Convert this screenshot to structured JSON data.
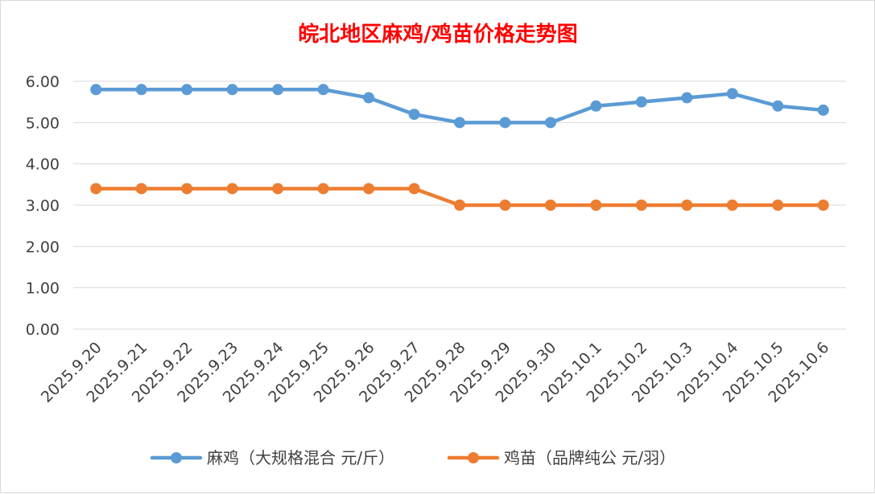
{
  "chart_data": {
    "type": "line",
    "title": "皖北地区麻鸡/鸡苗价格走势图",
    "title_color": "#ff0000",
    "xlabel": "",
    "ylabel": "",
    "ylim": [
      0,
      6
    ],
    "y_ticks": [
      "0.00",
      "1.00",
      "2.00",
      "3.00",
      "4.00",
      "5.00",
      "6.00"
    ],
    "grid": true,
    "legend_position": "bottom",
    "categories": [
      "2025.9.20",
      "2025.9.21",
      "2025.9.22",
      "2025.9.23",
      "2025.9.24",
      "2025.9.25",
      "2025.9.26",
      "2025.9.27",
      "2025.9.28",
      "2025.9.29",
      "2025.9.30",
      "2025.10.1",
      "2025.10.2",
      "2025.10.3",
      "2025.10.4",
      "2025.10.5",
      "2025.10.6"
    ],
    "series": [
      {
        "name": "麻鸡（大规格混合 元/斤）",
        "color": "#5b9bd5",
        "values": [
          5.8,
          5.8,
          5.8,
          5.8,
          5.8,
          5.8,
          5.6,
          5.2,
          5.0,
          5.0,
          5.0,
          5.4,
          5.5,
          5.6,
          5.7,
          5.4,
          5.3
        ]
      },
      {
        "name": "鸡苗（品牌纯公 元/羽）",
        "color": "#ed7d31",
        "values": [
          3.4,
          3.4,
          3.4,
          3.4,
          3.4,
          3.4,
          3.4,
          3.4,
          3.0,
          3.0,
          3.0,
          3.0,
          3.0,
          3.0,
          3.0,
          3.0,
          3.0
        ]
      }
    ]
  }
}
